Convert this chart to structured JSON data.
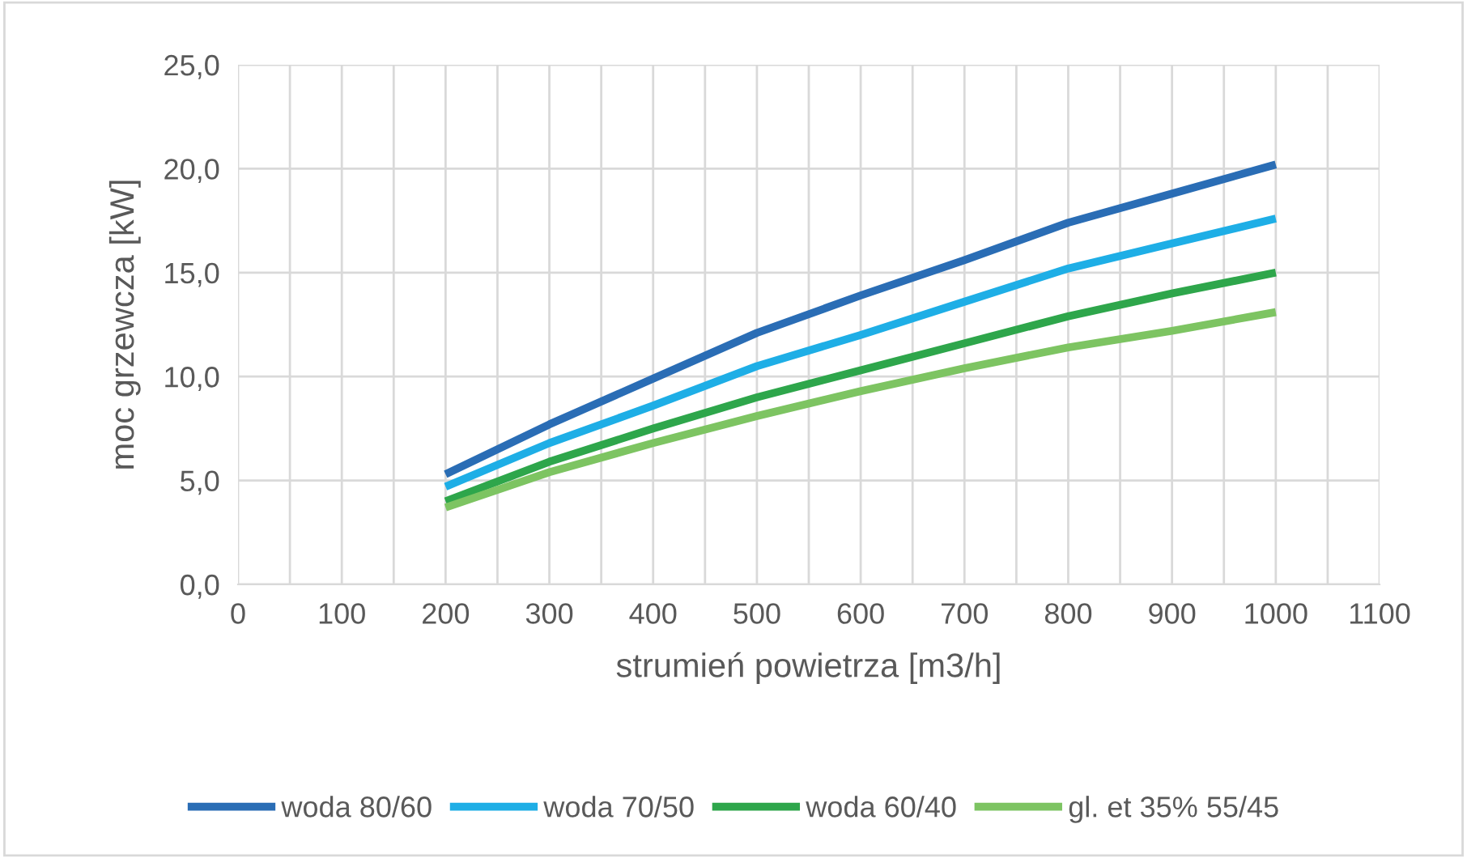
{
  "chart_data": {
    "type": "line",
    "xlabel": "strumień powietrza [m3/h]",
    "ylabel": "moc grzewcza [kW]",
    "x": [
      200,
      300,
      400,
      500,
      600,
      700,
      800,
      900,
      1000
    ],
    "series": [
      {
        "name": "woda 80/60",
        "color": "#2a6db5",
        "values": [
          5.3,
          7.7,
          9.9,
          12.1,
          13.9,
          15.6,
          17.4,
          18.8,
          20.2
        ]
      },
      {
        "name": "woda 70/50",
        "color": "#1eaee6",
        "values": [
          4.7,
          6.8,
          8.6,
          10.5,
          12.0,
          13.6,
          15.2,
          16.4,
          17.6
        ]
      },
      {
        "name": "woda 60/40",
        "color": "#2ea64b",
        "values": [
          4.0,
          5.9,
          7.5,
          9.0,
          10.3,
          11.6,
          12.9,
          14.0,
          15.0
        ]
      },
      {
        "name": "gl. et 35% 55/45",
        "color": "#7dc462",
        "values": [
          3.7,
          5.4,
          6.8,
          8.1,
          9.3,
          10.4,
          11.4,
          12.2,
          13.1
        ]
      }
    ],
    "xlim": [
      0,
      1100
    ],
    "xticks": [
      0,
      {
        "value": 50,
        "label": null
      },
      100,
      {
        "value": 150,
        "label": null
      },
      200,
      {
        "value": 250,
        "label": null
      },
      300,
      {
        "value": 350,
        "label": null
      },
      400,
      {
        "value": 450,
        "label": null
      },
      500,
      {
        "value": 550,
        "label": null
      },
      600,
      {
        "value": 650,
        "label": null
      },
      700,
      {
        "value": 750,
        "label": null
      },
      800,
      {
        "value": 850,
        "label": null
      },
      900,
      {
        "value": 950,
        "label": null
      },
      1000,
      {
        "value": 1050,
        "label": null
      },
      1100
    ],
    "ylim": [
      0,
      25
    ],
    "yticks": [
      {
        "value": 0,
        "label": "0,0"
      },
      {
        "value": 5,
        "label": "5,0"
      },
      {
        "value": 10,
        "label": "10,0"
      },
      {
        "value": 15,
        "label": "15,0"
      },
      {
        "value": 20,
        "label": "20,0"
      },
      {
        "value": 25,
        "label": "25,0"
      }
    ],
    "grid": true,
    "legend": "bottom",
    "marker": "none",
    "line_style": "solid"
  }
}
